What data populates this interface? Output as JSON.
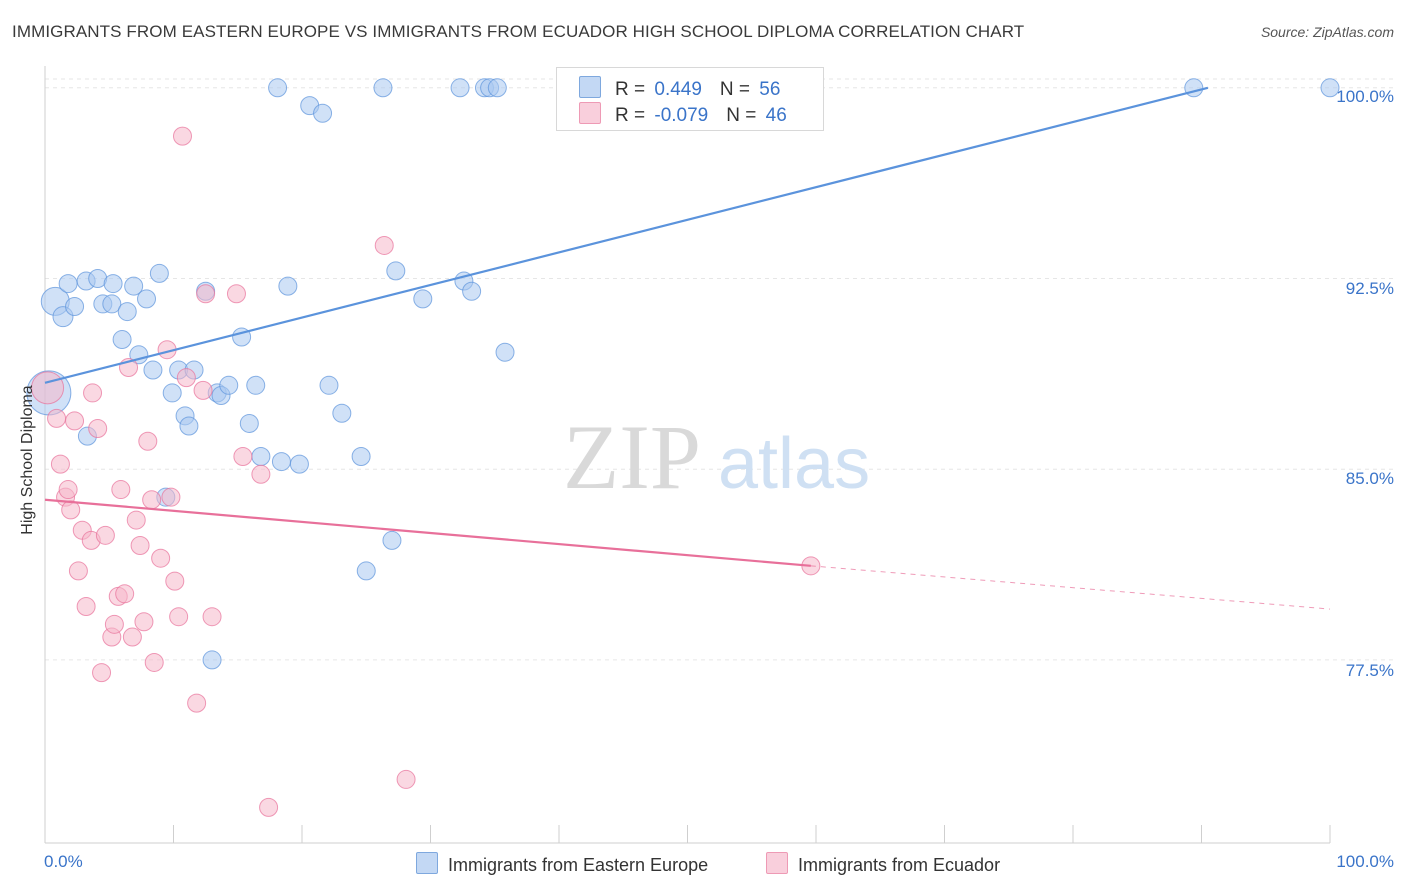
{
  "title": "IMMIGRANTS FROM EASTERN EUROPE VS IMMIGRANTS FROM ECUADOR HIGH SCHOOL DIPLOMA CORRELATION CHART",
  "source": "Source: ZipAtlas.com",
  "watermark": {
    "zip": "ZIP",
    "atlas": "atlas"
  },
  "legend": {
    "rows": [
      {
        "r_label": "R = ",
        "r_value": " 0.449",
        "n_label": "N = ",
        "n_value": "56",
        "color": "#a9c8f0"
      },
      {
        "r_label": "R = ",
        "r_value": "-0.079",
        "n_label": "N = ",
        "n_value": "46",
        "color": "#f5b8ca"
      }
    ]
  },
  "bottom_legend": {
    "series1": "Immigrants from Eastern Europe",
    "series2": "Immigrants from Ecuador"
  },
  "x_axis": {
    "min_label": "0.0%",
    "max_label": "100.0%"
  },
  "y_axis": {
    "label": "High School Diploma",
    "ticks": [
      "100.0%",
      "92.5%",
      "85.0%",
      "77.5%"
    ]
  },
  "chart_data": {
    "type": "scatter",
    "title": "IMMIGRANTS FROM EASTERN EUROPE VS IMMIGRANTS FROM ECUADOR HIGH SCHOOL DIPLOMA CORRELATION CHART",
    "xlabel": "",
    "ylabel": "High School Diploma",
    "xlim": [
      0,
      100
    ],
    "ylim": [
      70.3,
      100.7
    ],
    "yticks": [
      77.5,
      85.0,
      92.5,
      100.0
    ],
    "series": [
      {
        "name": "Immigrants from Eastern Europe",
        "color": "#5b93dc",
        "fill": "#a9c8f0",
        "r": 0.449,
        "n": 56,
        "trend": {
          "x0": 0,
          "y0": 88.4,
          "x1": 90.5,
          "y1": 100.0,
          "dashed_to": null
        },
        "points": [
          [
            0.3,
            88.0,
            22
          ],
          [
            0.8,
            91.6,
            14
          ],
          [
            1.4,
            91.0,
            10
          ],
          [
            1.8,
            92.3,
            9
          ],
          [
            2.3,
            91.4,
            9
          ],
          [
            3.2,
            92.4,
            9
          ],
          [
            4.1,
            92.5,
            9
          ],
          [
            4.5,
            91.5,
            9
          ],
          [
            5.2,
            91.5,
            9
          ],
          [
            5.3,
            92.3,
            9
          ],
          [
            3.3,
            86.3,
            9
          ],
          [
            6.0,
            90.1,
            9
          ],
          [
            6.4,
            91.2,
            9
          ],
          [
            6.9,
            92.2,
            9
          ],
          [
            7.3,
            89.5,
            9
          ],
          [
            7.9,
            91.7,
            9
          ],
          [
            8.4,
            88.9,
            9
          ],
          [
            8.9,
            92.7,
            9
          ],
          [
            9.9,
            88.0,
            9
          ],
          [
            10.4,
            88.9,
            9
          ],
          [
            10.9,
            87.1,
            9
          ],
          [
            11.2,
            86.7,
            9
          ],
          [
            11.6,
            88.9,
            9
          ],
          [
            9.4,
            83.9,
            9
          ],
          [
            12.5,
            92.0,
            9
          ],
          [
            13.0,
            77.5,
            9
          ],
          [
            13.4,
            88.0,
            9
          ],
          [
            13.7,
            87.9,
            9
          ],
          [
            14.3,
            88.3,
            9
          ],
          [
            15.3,
            90.2,
            9
          ],
          [
            15.9,
            86.8,
            9
          ],
          [
            16.4,
            88.3,
            9
          ],
          [
            16.8,
            85.5,
            9
          ],
          [
            18.1,
            100.0,
            9
          ],
          [
            18.4,
            85.3,
            9
          ],
          [
            18.9,
            92.2,
            9
          ],
          [
            19.8,
            85.2,
            9
          ],
          [
            20.6,
            99.3,
            9
          ],
          [
            21.6,
            99.0,
            9
          ],
          [
            22.1,
            88.3,
            9
          ],
          [
            23.1,
            87.2,
            9
          ],
          [
            24.6,
            85.5,
            9
          ],
          [
            25.0,
            81.0,
            9
          ],
          [
            26.3,
            100.0,
            9
          ],
          [
            27.3,
            92.8,
            9
          ],
          [
            27.0,
            82.2,
            9
          ],
          [
            29.4,
            91.7,
            9
          ],
          [
            32.3,
            100.0,
            9
          ],
          [
            32.6,
            92.4,
            9
          ],
          [
            33.2,
            92.0,
            9
          ],
          [
            34.2,
            100.0,
            9
          ],
          [
            34.6,
            100.0,
            9
          ],
          [
            35.2,
            100.0,
            9
          ],
          [
            35.8,
            89.6,
            9
          ],
          [
            89.4,
            100.0,
            9
          ],
          [
            100.0,
            100.0,
            9
          ]
        ]
      },
      {
        "name": "Immigrants from Ecuador",
        "color": "#e8709a",
        "fill": "#f5b8ca",
        "r": -0.079,
        "n": 46,
        "trend": {
          "x0": 0,
          "y0": 83.8,
          "x1": 59.6,
          "y1": 81.2,
          "dashed_to": [
            100,
            79.5
          ]
        },
        "points": [
          [
            0.2,
            88.2,
            16
          ],
          [
            0.9,
            87.0,
            9
          ],
          [
            1.2,
            85.2,
            9
          ],
          [
            1.6,
            83.9,
            9
          ],
          [
            1.8,
            84.2,
            9
          ],
          [
            2.0,
            83.4,
            9
          ],
          [
            2.3,
            86.9,
            9
          ],
          [
            2.6,
            81.0,
            9
          ],
          [
            2.9,
            82.6,
            9
          ],
          [
            3.2,
            79.6,
            9
          ],
          [
            3.6,
            82.2,
            9
          ],
          [
            3.7,
            88.0,
            9
          ],
          [
            4.1,
            86.6,
            9
          ],
          [
            4.4,
            77.0,
            9
          ],
          [
            4.7,
            82.4,
            9
          ],
          [
            5.2,
            78.4,
            9
          ],
          [
            5.4,
            78.9,
            9
          ],
          [
            5.7,
            80.0,
            9
          ],
          [
            5.9,
            84.2,
            9
          ],
          [
            6.2,
            80.1,
            9
          ],
          [
            6.5,
            89.0,
            9
          ],
          [
            6.8,
            78.4,
            9
          ],
          [
            7.1,
            83.0,
            9
          ],
          [
            7.4,
            82.0,
            9
          ],
          [
            7.7,
            79.0,
            9
          ],
          [
            8.0,
            86.1,
            9
          ],
          [
            8.3,
            83.8,
            9
          ],
          [
            8.5,
            77.4,
            9
          ],
          [
            9.0,
            81.5,
            9
          ],
          [
            9.5,
            89.7,
            9
          ],
          [
            9.8,
            83.9,
            9
          ],
          [
            10.1,
            80.6,
            9
          ],
          [
            10.4,
            79.2,
            9
          ],
          [
            10.7,
            98.1,
            9
          ],
          [
            11.0,
            88.6,
            9
          ],
          [
            11.8,
            75.8,
            9
          ],
          [
            12.5,
            91.9,
            9
          ],
          [
            13.0,
            79.2,
            9
          ],
          [
            14.9,
            91.9,
            9
          ],
          [
            15.4,
            85.5,
            9
          ],
          [
            16.8,
            84.8,
            9
          ],
          [
            17.4,
            71.7,
            9
          ],
          [
            26.4,
            93.8,
            9
          ],
          [
            28.1,
            72.8,
            9
          ],
          [
            59.6,
            81.2,
            9
          ],
          [
            12.3,
            88.1,
            9
          ]
        ]
      }
    ]
  }
}
